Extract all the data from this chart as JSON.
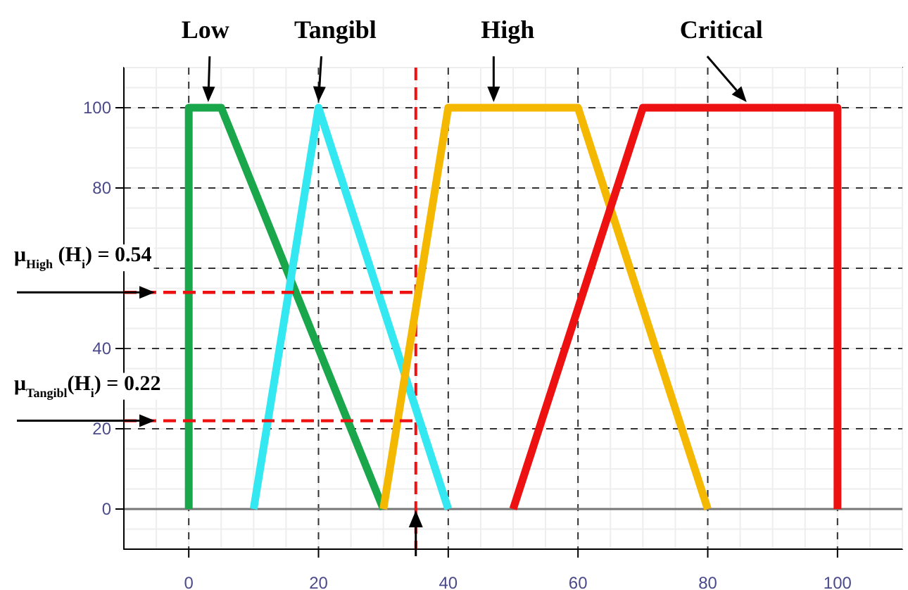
{
  "chart_data": {
    "type": "line",
    "xlim": [
      -10,
      110
    ],
    "ylim": [
      -10,
      110
    ],
    "xticks": [
      0,
      20,
      40,
      60,
      80,
      100
    ],
    "yticks": [
      0,
      20,
      40,
      {
        "value": 60,
        "label": null
      },
      80,
      100
    ],
    "grid": true,
    "line_style": "solid",
    "marker": "none",
    "series": [
      {
        "x": [
          0,
          0,
          5,
          30
        ],
        "values": [
          0,
          100,
          100,
          0
        ],
        "color": "#1aa64a"
      },
      {
        "x": [
          10,
          20,
          40
        ],
        "values": [
          0,
          100,
          0
        ],
        "color": "#33e8f0"
      },
      {
        "x": [
          30,
          40,
          60,
          80
        ],
        "values": [
          0,
          100,
          100,
          0
        ],
        "color": "#f5b800"
      },
      {
        "x": [
          50,
          70,
          100,
          100
        ],
        "values": [
          0,
          100,
          100,
          0
        ],
        "color": "#ee1111"
      },
      {
        "x": [
          -10,
          35
        ],
        "values": [
          54,
          54
        ],
        "color": "#ee1111",
        "line_style": "dashed"
      },
      {
        "x": [
          -10,
          35
        ],
        "values": [
          22,
          22
        ],
        "color": "#ee1111",
        "line_style": "dashed"
      }
    ],
    "ref_lines": [
      {
        "axis": "x",
        "value": 35,
        "color": "#ee1111",
        "line_style": "dashed"
      }
    ],
    "annotations": [
      {
        "text": "Low",
        "x": 3,
        "y": 100
      },
      {
        "text": "Tangibl",
        "x": 20,
        "y": 100
      },
      {
        "text": "High",
        "x": 47,
        "y": 100
      },
      {
        "text": "Critical",
        "x": 86,
        "y": 100
      },
      {
        "text": "μ$_{High}$ (H$_{i}$) = 0.54",
        "x": -10,
        "y": 54
      },
      {
        "text": "μ$_{Tangibl}$(H$_{i}$) = 0.22",
        "x": -10,
        "y": 22
      }
    ]
  }
}
